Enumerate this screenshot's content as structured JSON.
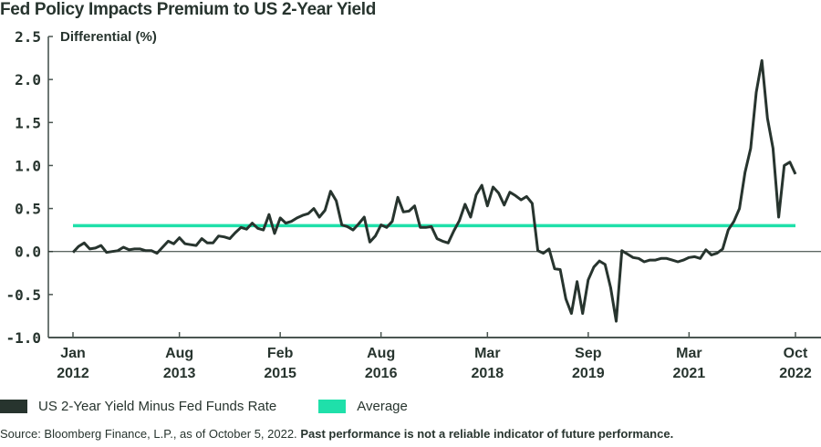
{
  "chart_data": {
    "type": "line",
    "title": "Fed Policy Impacts Premium to US 2-Year Yield",
    "ylabel": "Differential (%)",
    "xlabel": "",
    "ylim": [
      -1.0,
      2.5
    ],
    "yticks": [
      "2.5",
      "2.0",
      "1.5",
      "1.0",
      "0.5",
      "0.0",
      "-0.5",
      "-1.0"
    ],
    "ytick_values": [
      2.5,
      2.0,
      1.5,
      1.0,
      0.5,
      0.0,
      -0.5,
      -1.0
    ],
    "xlim_months": [
      0,
      129
    ],
    "xticks": [
      {
        "month": 0,
        "line1": "Jan",
        "line2": "2012"
      },
      {
        "month": 19,
        "line1": "Aug",
        "line2": "2013"
      },
      {
        "month": 37,
        "line1": "Feb",
        "line2": "2015"
      },
      {
        "month": 55,
        "line1": "Aug",
        "line2": "2016"
      },
      {
        "month": 74,
        "line1": "Mar",
        "line2": "2018"
      },
      {
        "month": 92,
        "line1": "Sep",
        "line2": "2019"
      },
      {
        "month": 110,
        "line1": "Mar",
        "line2": "2021"
      },
      {
        "month": 129,
        "line1": "Oct",
        "line2": "2022"
      }
    ],
    "grid": false,
    "zero_line": true,
    "legend_position": "bottom",
    "series": [
      {
        "name": "US 2-Year Yield Minus Fed Funds Rate",
        "color": "#27342e",
        "points": [
          [
            0,
            -0.01
          ],
          [
            1,
            0.06
          ],
          [
            2,
            0.1
          ],
          [
            3,
            0.03
          ],
          [
            4,
            0.04
          ],
          [
            5,
            0.07
          ],
          [
            6,
            -0.01
          ],
          [
            7,
            0.0
          ],
          [
            8,
            0.01
          ],
          [
            9,
            0.05
          ],
          [
            10,
            0.02
          ],
          [
            11,
            0.03
          ],
          [
            12,
            0.03
          ],
          [
            13,
            0.01
          ],
          [
            14,
            0.01
          ],
          [
            15,
            -0.02
          ],
          [
            16,
            0.05
          ],
          [
            17,
            0.12
          ],
          [
            18,
            0.09
          ],
          [
            19,
            0.16
          ],
          [
            20,
            0.09
          ],
          [
            21,
            0.08
          ],
          [
            22,
            0.07
          ],
          [
            23,
            0.15
          ],
          [
            24,
            0.1
          ],
          [
            25,
            0.1
          ],
          [
            26,
            0.18
          ],
          [
            27,
            0.17
          ],
          [
            28,
            0.15
          ],
          [
            29,
            0.22
          ],
          [
            30,
            0.28
          ],
          [
            31,
            0.26
          ],
          [
            32,
            0.33
          ],
          [
            33,
            0.27
          ],
          [
            34,
            0.25
          ],
          [
            35,
            0.43
          ],
          [
            36,
            0.21
          ],
          [
            37,
            0.39
          ],
          [
            38,
            0.33
          ],
          [
            39,
            0.35
          ],
          [
            40,
            0.39
          ],
          [
            41,
            0.42
          ],
          [
            42,
            0.44
          ],
          [
            43,
            0.5
          ],
          [
            44,
            0.4
          ],
          [
            45,
            0.48
          ],
          [
            46,
            0.7
          ],
          [
            47,
            0.59
          ],
          [
            48,
            0.31
          ],
          [
            49,
            0.29
          ],
          [
            50,
            0.25
          ],
          [
            51,
            0.32
          ],
          [
            52,
            0.4
          ],
          [
            53,
            0.11
          ],
          [
            54,
            0.18
          ],
          [
            55,
            0.31
          ],
          [
            56,
            0.28
          ],
          [
            57,
            0.35
          ],
          [
            58,
            0.63
          ],
          [
            59,
            0.46
          ],
          [
            60,
            0.47
          ],
          [
            61,
            0.53
          ],
          [
            62,
            0.28
          ],
          [
            63,
            0.28
          ],
          [
            64,
            0.29
          ],
          [
            65,
            0.15
          ],
          [
            66,
            0.12
          ],
          [
            67,
            0.1
          ],
          [
            68,
            0.24
          ],
          [
            69,
            0.36
          ],
          [
            70,
            0.55
          ],
          [
            71,
            0.4
          ],
          [
            72,
            0.66
          ],
          [
            73,
            0.77
          ],
          [
            74,
            0.53
          ],
          [
            75,
            0.75
          ],
          [
            76,
            0.68
          ],
          [
            77,
            0.54
          ],
          [
            78,
            0.69
          ],
          [
            79,
            0.65
          ],
          [
            80,
            0.6
          ],
          [
            81,
            0.64
          ],
          [
            82,
            0.56
          ],
          [
            83,
            0.01
          ],
          [
            84,
            -0.02
          ],
          [
            85,
            0.03
          ],
          [
            86,
            -0.2
          ],
          [
            87,
            -0.21
          ],
          [
            88,
            -0.55
          ],
          [
            89,
            -0.72
          ],
          [
            90,
            -0.35
          ],
          [
            91,
            -0.72
          ],
          [
            92,
            -0.33
          ],
          [
            93,
            -0.18
          ],
          [
            94,
            -0.11
          ],
          [
            95,
            -0.15
          ],
          [
            96,
            -0.42
          ],
          [
            97,
            -0.81
          ],
          [
            98,
            0.01
          ],
          [
            99,
            -0.03
          ],
          [
            100,
            -0.07
          ],
          [
            101,
            -0.08
          ],
          [
            102,
            -0.12
          ],
          [
            103,
            -0.1
          ],
          [
            104,
            -0.1
          ],
          [
            105,
            -0.08
          ],
          [
            106,
            -0.08
          ],
          [
            107,
            -0.1
          ],
          [
            108,
            -0.12
          ],
          [
            109,
            -0.1
          ],
          [
            110,
            -0.07
          ],
          [
            111,
            -0.06
          ],
          [
            112,
            -0.08
          ],
          [
            113,
            0.02
          ],
          [
            114,
            -0.04
          ],
          [
            115,
            -0.02
          ],
          [
            116,
            0.03
          ],
          [
            117,
            0.25
          ],
          [
            118,
            0.35
          ],
          [
            119,
            0.5
          ],
          [
            120,
            0.92
          ],
          [
            121,
            1.2
          ],
          [
            122,
            1.85
          ],
          [
            123,
            2.22
          ],
          [
            124,
            1.55
          ],
          [
            125,
            1.2
          ],
          [
            126,
            0.4
          ],
          [
            127,
            1.0
          ],
          [
            128,
            1.04
          ],
          [
            129,
            0.9
          ]
        ]
      },
      {
        "name": "Average",
        "color": "#1fe0aa",
        "value": 0.3
      }
    ]
  },
  "legend": {
    "series_label": "US 2-Year Yield Minus Fed Funds Rate",
    "average_label": "Average"
  },
  "source": {
    "text": "Source: Bloomberg Finance, L.P., as of October 5, 2022.",
    "disclaimer": "Past performance is not a reliable indicator of future performance."
  }
}
